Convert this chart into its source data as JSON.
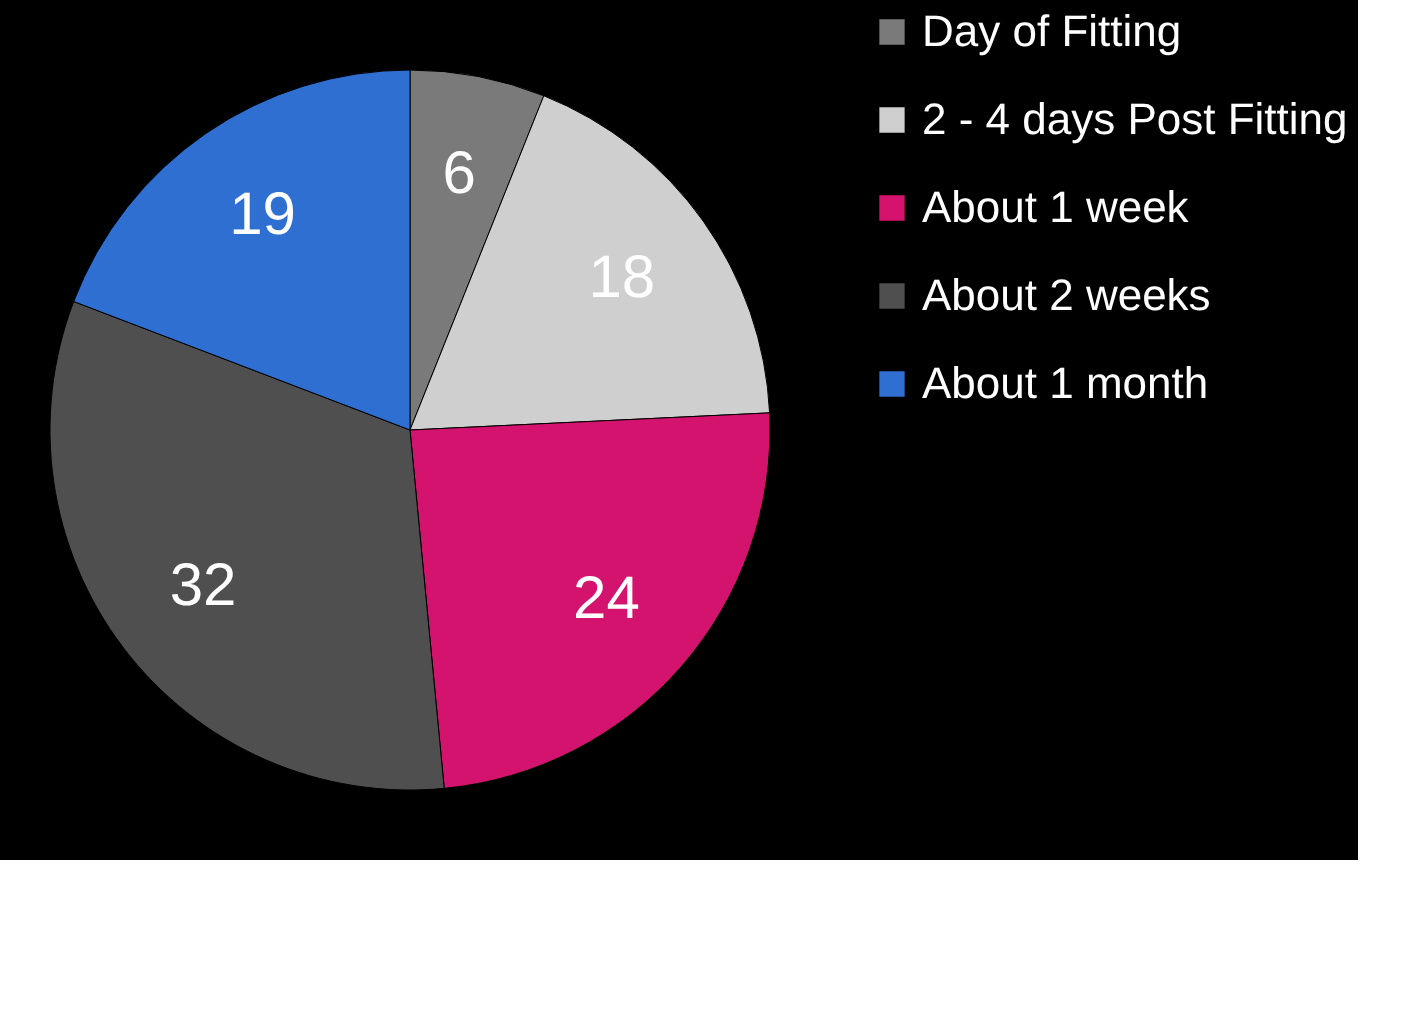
{
  "chart_data": {
    "type": "pie",
    "categories": [
      "Day of Fitting",
      "2 - 4 days Post Fitting",
      "About 1 week",
      "About 2 weeks",
      "About 1 month"
    ],
    "values": [
      6,
      18,
      24,
      32,
      19
    ],
    "colors": [
      "#7a7a7a",
      "#cfcfcf",
      "#d4136e",
      "#4f4f4f",
      "#2f6fd2"
    ],
    "data_labels": true,
    "legend": "right"
  }
}
